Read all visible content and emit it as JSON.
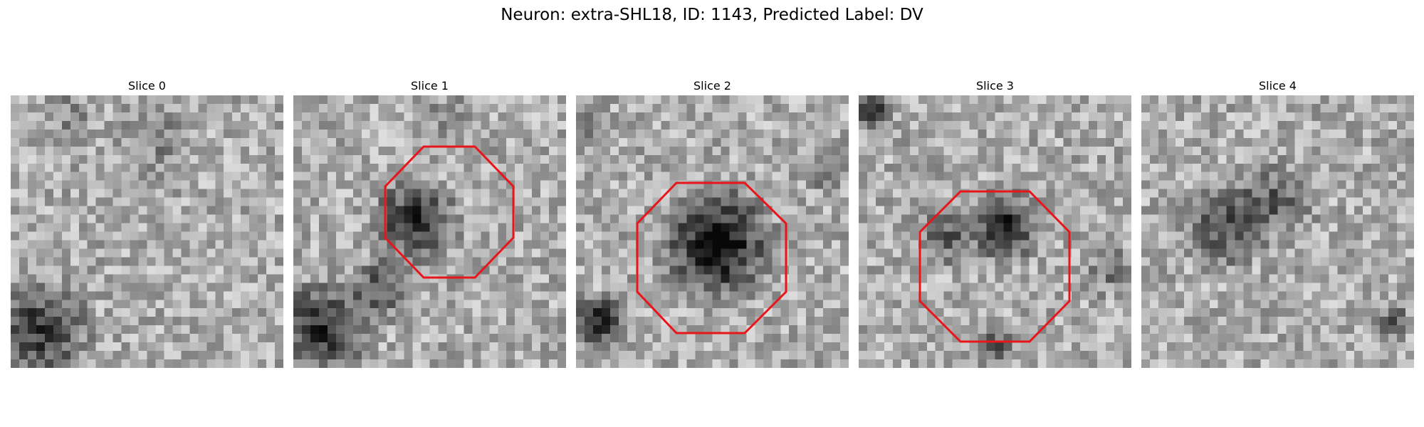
{
  "figure": {
    "title": "Neuron: extra-SHL18, ID: 1143, Predicted Label: DV"
  },
  "panels": [
    {
      "title": "Slice 0",
      "roi": null
    },
    {
      "title": "Slice 1",
      "roi": {
        "shape": "octagon",
        "color": "#e8151b"
      }
    },
    {
      "title": "Slice 2",
      "roi": {
        "shape": "octagon",
        "color": "#e8151b"
      }
    },
    {
      "title": "Slice 3",
      "roi": {
        "shape": "octagon",
        "color": "#e8151b"
      }
    },
    {
      "title": "Slice 4",
      "roi": null
    }
  ],
  "colormap": "gray"
}
